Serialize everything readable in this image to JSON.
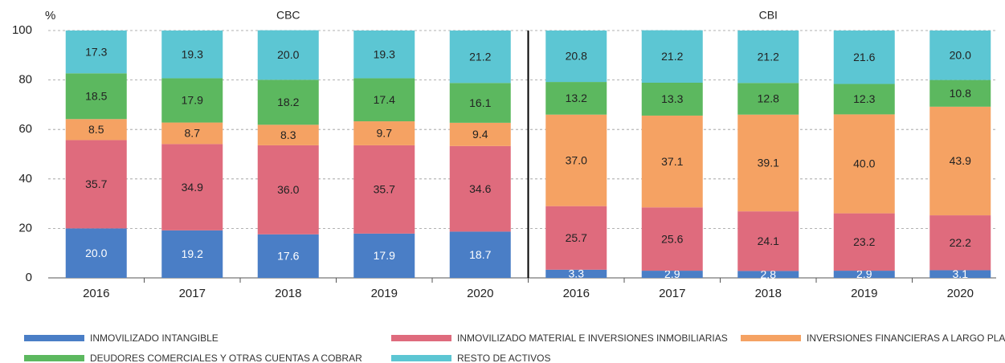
{
  "chart_data": {
    "type": "stacked_bar",
    "y_unit": "%",
    "groups": [
      {
        "name": "CBC",
        "categories": [
          "2016",
          "2017",
          "2018",
          "2019",
          "2020"
        ]
      },
      {
        "name": "CBI",
        "categories": [
          "2016",
          "2017",
          "2018",
          "2019",
          "2020"
        ]
      }
    ],
    "series": [
      {
        "name": "INMOVILIZADO INTANGIBLE",
        "color": "#4a7ec6",
        "label_color": "#ffffff",
        "values": [
          20.0,
          19.2,
          17.6,
          17.9,
          18.7,
          3.3,
          2.9,
          2.8,
          2.9,
          3.1
        ],
        "value_labels": [
          "20.0",
          "19.2",
          "17.6",
          "17.9",
          "18.7",
          "3.3",
          "2.9",
          "2.8",
          "2.9",
          "3.1"
        ]
      },
      {
        "name": "INMOVILIZADO MATERIAL E INVERSIONES INMOBILIARIAS",
        "color": "#df6b7d",
        "label_color": "#222222",
        "values": [
          35.7,
          34.9,
          36.0,
          35.7,
          34.6,
          25.7,
          25.6,
          24.1,
          23.2,
          22.2
        ],
        "value_labels": [
          "35.7",
          "34.9",
          "36.0",
          "35.7",
          "34.6",
          "25.7",
          "25.6",
          "24.1",
          "23.2",
          "22.2"
        ]
      },
      {
        "name": "INVERSIONES FINANCIERAS A LARGO PLAZO",
        "color": "#f5a263",
        "label_color": "#222222",
        "values": [
          8.5,
          8.7,
          8.3,
          9.7,
          9.4,
          37.0,
          37.1,
          39.1,
          40.0,
          43.9
        ],
        "value_labels": [
          "8.5",
          "8.7",
          "8.3",
          "9.7",
          "9.4",
          "37.0",
          "37.1",
          "39.1",
          "40.0",
          "43.9"
        ]
      },
      {
        "name": "DEUDORES COMERCIALES Y OTRAS CUENTAS A COBRAR",
        "color": "#5cb85f",
        "label_color": "#222222",
        "values": [
          18.5,
          17.9,
          18.2,
          17.4,
          16.1,
          13.2,
          13.3,
          12.8,
          12.3,
          10.8
        ],
        "value_labels": [
          "18.5",
          "17.9",
          "18.2",
          "17.4",
          "16.1",
          "13.2",
          "13.3",
          "12.8",
          "12.3",
          "10.8"
        ]
      },
      {
        "name": "RESTO DE ACTIVOS",
        "color": "#5cc6d3",
        "label_color": "#222222",
        "values": [
          17.3,
          19.3,
          20.0,
          19.3,
          21.2,
          20.8,
          21.2,
          21.2,
          21.6,
          20.0
        ],
        "value_labels": [
          "17.3",
          "19.3",
          "20.0",
          "19.3",
          "21.2",
          "20.8",
          "21.2",
          "21.2",
          "21.6",
          "20.0"
        ]
      }
    ],
    "ylim": [
      0,
      100
    ],
    "yticks": [
      0,
      20,
      40,
      60,
      80,
      100
    ],
    "grid": true
  }
}
